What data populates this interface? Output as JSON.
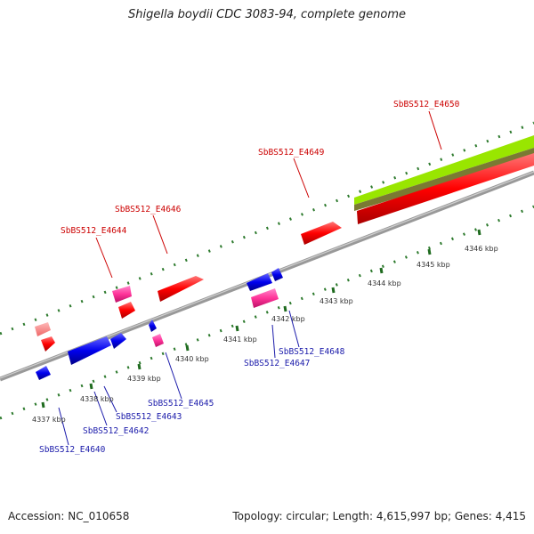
{
  "title": "Shigella boydii CDC 3083-94, complete genome",
  "footer": {
    "accession": "Accession: NC_010658",
    "summary": "Topology: circular; Length: 4,615,997 bp; Genes: 4,415"
  },
  "kbp_labels": [
    "4337 kbp",
    "4338 kbp",
    "4339 kbp",
    "4340 kbp",
    "4341 kbp",
    "4342 kbp",
    "4343 kbp",
    "4344 kbp",
    "4345 kbp",
    "4346 kbp"
  ],
  "gene_labels": {
    "E4650": "SbBS512_E4650",
    "E4649": "SbBS512_E4649",
    "E4646": "SbBS512_E4646",
    "E4644": "SbBS512_E4644",
    "E4648": "SbBS512_E4648",
    "E4647": "SbBS512_E4647",
    "E4645": "SbBS512_E4645",
    "E4643": "SbBS512_E4643",
    "E4642": "SbBS512_E4642",
    "E4640": "SbBS512_E4640"
  },
  "colors": {
    "forward_gene": "#ff0000",
    "reverse_gene": "#0000ee",
    "rna_gene": "#ff3399",
    "pseudo_gene": "#ff8080",
    "backbone": "#888888",
    "tick": "#2d7a2d",
    "track_green": "#99e600",
    "track_olive": "#7a7a33"
  }
}
